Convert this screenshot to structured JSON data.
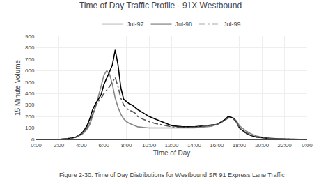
{
  "chart_data": {
    "type": "line",
    "title": "Time of Day Traffic Profile - 91X Westbound",
    "x_label": "Time of Day",
    "y_label": "15 Minute Volume",
    "annotations": [
      "Figure 2-30. Time of Day Distributions for Westbound SR 91 Express Lane Traffic"
    ],
    "x": [
      0,
      0.5,
      1,
      1.5,
      2,
      2.5,
      3,
      3.5,
      4,
      4.25,
      4.5,
      4.75,
      5,
      5.25,
      5.5,
      5.75,
      6,
      6.25,
      6.5,
      6.75,
      7,
      7.25,
      7.5,
      7.75,
      8,
      8.25,
      8.5,
      8.75,
      9,
      9.5,
      10,
      10.5,
      11,
      11.5,
      12,
      12.5,
      13,
      13.5,
      14,
      14.5,
      15,
      15.5,
      16,
      16.25,
      16.5,
      16.75,
      17,
      17.25,
      17.5,
      17.75,
      18,
      18.5,
      19,
      19.5,
      20,
      20.5,
      21,
      21.5,
      22,
      22.5,
      23,
      23.5,
      24
    ],
    "series": [
      {
        "name": "Jul-97",
        "color": "#888888",
        "line_style": "solid",
        "values": [
          0,
          0,
          0,
          0,
          0,
          5,
          10,
          20,
          40,
          60,
          90,
          130,
          200,
          280,
          370,
          470,
          560,
          600,
          570,
          480,
          360,
          280,
          220,
          180,
          155,
          140,
          130,
          120,
          110,
          105,
          100,
          100,
          100,
          100,
          100,
          100,
          100,
          100,
          100,
          105,
          110,
          115,
          130,
          140,
          155,
          170,
          185,
          190,
          185,
          160,
          120,
          80,
          50,
          30,
          20,
          15,
          10,
          5,
          5,
          3,
          2,
          0,
          0
        ]
      },
      {
        "name": "Jul-98",
        "color": "#000000",
        "line_style": "solid",
        "values": [
          0,
          0,
          0,
          0,
          0,
          5,
          10,
          20,
          50,
          80,
          120,
          180,
          260,
          310,
          350,
          390,
          480,
          530,
          590,
          650,
          780,
          650,
          450,
          350,
          330,
          310,
          300,
          280,
          260,
          230,
          200,
          180,
          160,
          140,
          120,
          115,
          110,
          110,
          110,
          115,
          120,
          125,
          130,
          145,
          160,
          175,
          200,
          195,
          180,
          150,
          100,
          60,
          35,
          20,
          15,
          10,
          5,
          5,
          3,
          2,
          0,
          0,
          0
        ]
      },
      {
        "name": "Jul-99",
        "color": "#555555",
        "line_style": "dashdot",
        "values": [
          0,
          0,
          0,
          0,
          0,
          5,
          10,
          20,
          45,
          70,
          100,
          150,
          220,
          290,
          330,
          360,
          400,
          430,
          460,
          500,
          540,
          460,
          360,
          300,
          270,
          255,
          245,
          230,
          200,
          175,
          155,
          140,
          130,
          120,
          110,
          108,
          105,
          105,
          108,
          112,
          118,
          125,
          130,
          145,
          155,
          170,
          190,
          185,
          175,
          150,
          100,
          65,
          40,
          25,
          15,
          10,
          5,
          5,
          3,
          2,
          0,
          0,
          0
        ]
      }
    ],
    "xlim": [
      0,
      24
    ],
    "xticks": [
      {
        "value": 0,
        "label": "0:00"
      },
      {
        "value": 2,
        "label": "2:00"
      },
      {
        "value": 4,
        "label": "4:00"
      },
      {
        "value": 6,
        "label": "6:00"
      },
      {
        "value": 8,
        "label": "8:00"
      },
      {
        "value": 10,
        "label": "10:00"
      },
      {
        "value": 12,
        "label": "12:00"
      },
      {
        "value": 14,
        "label": "14:00"
      },
      {
        "value": 16,
        "label": "16:00"
      },
      {
        "value": 18,
        "label": "18:00"
      },
      {
        "value": 20,
        "label": "20:00"
      },
      {
        "value": 22,
        "label": "22:00"
      },
      {
        "value": 24,
        "label": "0:00"
      }
    ],
    "ylim": [
      0,
      900
    ],
    "yticks": [
      0,
      100,
      200,
      300,
      400,
      500,
      600,
      700,
      800,
      900
    ],
    "grid": true,
    "legend": "top"
  }
}
